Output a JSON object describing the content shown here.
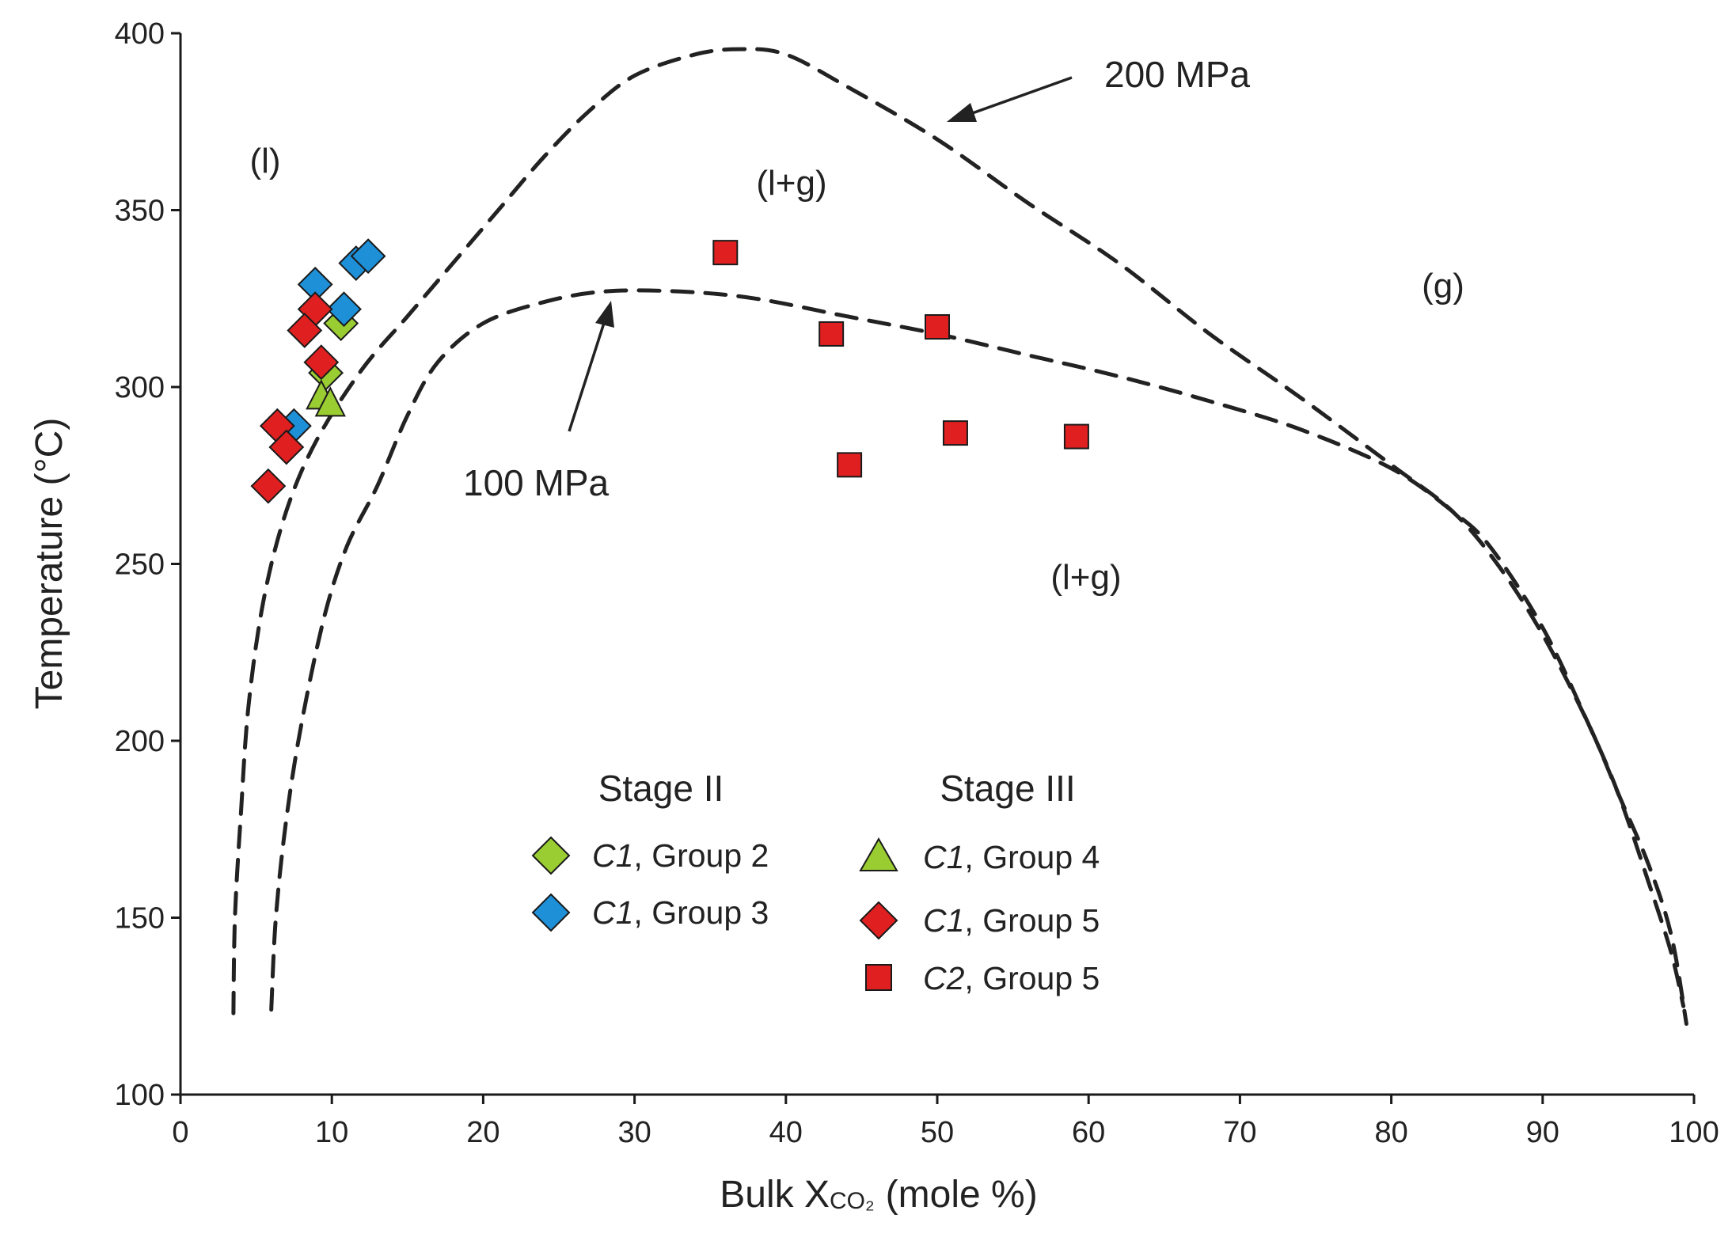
{
  "chart_data": {
    "type": "scatter",
    "xlabel": "Bulk X",
    "xlabel_sub": "CO₂",
    "xlabel_unit": "(mole %)",
    "ylabel": "Temperature (°C)",
    "xlim": [
      0,
      100
    ],
    "ylim": [
      100,
      400
    ],
    "xticks": [
      0,
      10,
      20,
      30,
      40,
      50,
      60,
      70,
      80,
      90,
      100
    ],
    "yticks": [
      100,
      150,
      200,
      250,
      300,
      350,
      400
    ],
    "grid": false,
    "region_labels": {
      "liquid": "(l)",
      "two_phase_upper": "(l+g)",
      "gas": "(g)",
      "two_phase_lower": "(l+g)"
    },
    "curves": [
      {
        "name": "200 MPa",
        "points": [
          [
            3.5,
            123
          ],
          [
            3.6,
            150
          ],
          [
            4,
            180
          ],
          [
            4.5,
            210
          ],
          [
            5.5,
            240
          ],
          [
            7,
            265
          ],
          [
            9,
            285
          ],
          [
            12,
            305
          ],
          [
            15,
            320
          ],
          [
            18,
            335
          ],
          [
            21,
            350
          ],
          [
            24,
            365
          ],
          [
            27,
            378
          ],
          [
            30,
            388
          ],
          [
            34,
            394
          ],
          [
            37,
            395.5
          ],
          [
            40,
            394
          ],
          [
            44,
            385
          ],
          [
            50,
            370
          ],
          [
            56,
            352
          ],
          [
            62,
            335
          ],
          [
            68,
            315
          ],
          [
            74,
            297
          ],
          [
            80,
            278
          ],
          [
            84,
            265
          ],
          [
            87,
            250
          ],
          [
            90,
            230
          ],
          [
            93,
            205
          ],
          [
            95,
            185
          ],
          [
            97,
            165
          ],
          [
            98.5,
            145
          ],
          [
            99.5,
            120
          ]
        ]
      },
      {
        "name": "100 MPa",
        "points": [
          [
            6,
            124
          ],
          [
            6.3,
            150
          ],
          [
            7,
            178
          ],
          [
            8,
            205
          ],
          [
            9.5,
            235
          ],
          [
            11,
            255
          ],
          [
            13,
            272
          ],
          [
            15,
            292
          ],
          [
            17,
            307
          ],
          [
            20,
            318
          ],
          [
            24,
            324
          ],
          [
            28,
            327
          ],
          [
            33,
            327
          ],
          [
            38,
            325
          ],
          [
            44,
            320
          ],
          [
            50,
            315
          ],
          [
            56,
            309
          ],
          [
            62,
            303
          ],
          [
            68,
            296
          ],
          [
            74,
            288
          ],
          [
            80,
            277
          ],
          [
            84,
            265
          ],
          [
            86.5,
            255
          ],
          [
            90,
            232
          ],
          [
            93,
            205
          ],
          [
            95,
            185
          ],
          [
            97,
            160
          ],
          [
            98.5,
            140
          ],
          [
            99.3,
            125
          ]
        ]
      }
    ],
    "series": [
      {
        "name": "C1, Group 2",
        "stage": "Stage II",
        "marker": "diamond",
        "color": "#9ACD32",
        "points": [
          [
            10.6,
            318
          ],
          [
            9.6,
            304
          ]
        ]
      },
      {
        "name": "C1, Group 3",
        "stage": "Stage II",
        "marker": "diamond",
        "color": "#1E90D8",
        "points": [
          [
            8.9,
            329
          ],
          [
            10.8,
            322
          ],
          [
            11.6,
            335
          ],
          [
            12.4,
            337
          ],
          [
            7.5,
            289
          ]
        ]
      },
      {
        "name": "C1, Group 4",
        "stage": "Stage III",
        "marker": "triangle",
        "color": "#9ACD32",
        "points": [
          [
            9.3,
            297
          ],
          [
            9.9,
            295
          ]
        ]
      },
      {
        "name": "C1, Group 5",
        "stage": "Stage III",
        "marker": "diamond",
        "color": "#E02020",
        "points": [
          [
            8.9,
            322
          ],
          [
            8.2,
            316
          ],
          [
            9.3,
            307
          ],
          [
            6.4,
            289
          ],
          [
            7.0,
            283
          ],
          [
            5.8,
            272
          ]
        ]
      },
      {
        "name": "C2, Group 5",
        "stage": "Stage III",
        "marker": "square",
        "color": "#E02020",
        "points": [
          [
            36,
            338
          ],
          [
            43,
            315
          ],
          [
            50,
            317
          ],
          [
            44.2,
            278
          ],
          [
            51.2,
            287
          ],
          [
            59.2,
            286
          ]
        ]
      }
    ],
    "annotations": [
      {
        "text": "200 MPa",
        "points_to": [
          50.5,
          370
        ]
      },
      {
        "text": "100 MPa",
        "points_to": [
          28.3,
          322
        ]
      }
    ],
    "legend": {
      "groups": [
        {
          "header": "Stage II",
          "entries": [
            {
              "italic": "C1",
              "rest": ", Group 2",
              "marker": "diamond",
              "color": "#9ACD32"
            },
            {
              "italic": "C1",
              "rest": ", Group 3",
              "marker": "diamond",
              "color": "#1E90D8"
            }
          ]
        },
        {
          "header": "Stage III",
          "entries": [
            {
              "italic": "C1",
              "rest": ", Group 4",
              "marker": "triangle",
              "color": "#9ACD32"
            },
            {
              "italic": "C1",
              "rest": ", Group 5",
              "marker": "diamond",
              "color": "#E02020"
            },
            {
              "italic": "C2",
              "rest": ", Group 5",
              "marker": "square",
              "color": "#E02020"
            }
          ]
        }
      ]
    }
  }
}
